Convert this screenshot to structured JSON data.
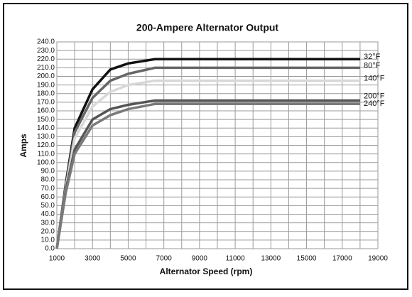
{
  "chart_data": {
    "type": "line",
    "title": "200-Ampere Alternator Output",
    "x_label": "Alternator Speed (rpm)",
    "y_label": "Amps",
    "x": [
      1000,
      1500,
      2000,
      3000,
      4000,
      5000,
      6500,
      18000
    ],
    "series": [
      {
        "name": "32°F",
        "color": "#111111",
        "values": [
          0,
          75,
          140,
          185,
          208,
          215,
          220,
          220
        ]
      },
      {
        "name": "80°F",
        "color": "#666666",
        "values": [
          0,
          72,
          135,
          175,
          195,
          203,
          210,
          210
        ]
      },
      {
        "name": "140°F",
        "color": "#d8d8d8",
        "values": [
          0,
          70,
          128,
          165,
          182,
          190,
          195,
          195
        ]
      },
      {
        "name": "200°F",
        "color": "#555555",
        "values": [
          0,
          68,
          115,
          150,
          162,
          167,
          172,
          172
        ]
      },
      {
        "name": "240°F",
        "color": "#7a7a7a",
        "values": [
          0,
          65,
          110,
          143,
          155,
          162,
          168,
          168
        ]
      }
    ],
    "xlim": [
      1000,
      19000
    ],
    "xticks": [
      1000,
      3000,
      5000,
      7000,
      9000,
      11000,
      13000,
      15000,
      17000,
      19000
    ],
    "x_minor_ticks": [
      2000,
      4000,
      6000,
      8000,
      10000,
      12000,
      14000,
      16000,
      18000
    ],
    "ylim": [
      0,
      240
    ],
    "yticks": [
      {
        "value": 0,
        "label": "0.0"
      },
      {
        "value": 10,
        "label": "10.0"
      },
      {
        "value": 20,
        "label": "20.0"
      },
      {
        "value": 30,
        "label": "30.0"
      },
      {
        "value": 40,
        "label": "40.0"
      },
      {
        "value": 50,
        "label": "50.0"
      },
      {
        "value": 60,
        "label": "60.0"
      },
      {
        "value": 70,
        "label": "70.0"
      },
      {
        "value": 80,
        "label": "80.0"
      },
      {
        "value": 90,
        "label": "90.0"
      },
      {
        "value": 100,
        "label": "100.0"
      },
      {
        "value": 110,
        "label": "110.0"
      },
      {
        "value": 120,
        "label": "120.0"
      },
      {
        "value": 130,
        "label": "130.0"
      },
      {
        "value": 140,
        "label": "140.0"
      },
      {
        "value": 150,
        "label": "150.0"
      },
      {
        "value": 160,
        "label": "160.0"
      },
      {
        "value": 170,
        "label": "170.0"
      },
      {
        "value": 180,
        "label": "180.0"
      },
      {
        "value": 190,
        "label": "190.0"
      },
      {
        "value": 200,
        "label": "200.0"
      },
      {
        "value": 210,
        "label": "210.0"
      },
      {
        "value": 220,
        "label": "220.0"
      },
      {
        "value": 230,
        "label": "230.0"
      },
      {
        "value": 240,
        "label": "240.0"
      }
    ],
    "grid": true
  }
}
